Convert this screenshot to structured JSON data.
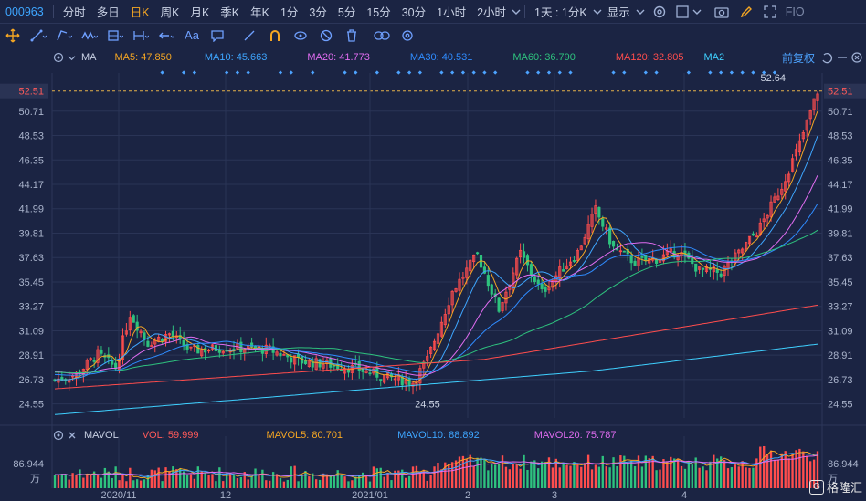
{
  "toolbar": {
    "code": "000963",
    "periods": [
      "分时",
      "多日",
      "日K",
      "周K",
      "月K",
      "季K",
      "年K",
      "1分",
      "3分",
      "5分",
      "15分",
      "30分",
      "1小时",
      "2小时"
    ],
    "active_period": "日K",
    "combo_label": "1天 : 1分K",
    "display_label": "显示",
    "fio_label": "FIO"
  },
  "indicator_bar": {
    "name": "MA",
    "fuquan": "前复权",
    "items": [
      {
        "label": "MA5: 47.850",
        "color": "#f5a623"
      },
      {
        "label": "MA10: 45.663",
        "color": "#3ea6ff"
      },
      {
        "label": "MA20: 41.773",
        "color": "#e06cf0"
      },
      {
        "label": "MA30: 40.531",
        "color": "#2f8cff"
      },
      {
        "label": "MA60: 36.790",
        "color": "#2ec27e"
      },
      {
        "label": "MA120: 32.805",
        "color": "#ff4d4d"
      },
      {
        "label": "MA2",
        "color": "#3fd0ff"
      }
    ]
  },
  "volume_bar": {
    "name": "MAVOL",
    "items": [
      {
        "label": "VOL: 59.999",
        "color": "#ff5a5a"
      },
      {
        "label": "MAVOL5: 80.701",
        "color": "#f5a623"
      },
      {
        "label": "MAVOL10: 88.892",
        "color": "#3ea6ff"
      },
      {
        "label": "MAVOL20: 75.787",
        "color": "#e06cf0"
      }
    ],
    "axis_top": "86.944",
    "axis_unit": "万"
  },
  "watermark": "格隆汇",
  "chart_data": {
    "type": "candlestick",
    "y_ticks": [
      52.51,
      50.71,
      48.53,
      46.35,
      44.17,
      41.99,
      39.81,
      37.63,
      35.45,
      33.27,
      31.09,
      28.91,
      26.73,
      24.55
    ],
    "last_price": 52.51,
    "ylim": [
      23.3,
      53.3
    ],
    "x_labels": [
      "2020/11",
      "12",
      "2021/01",
      "2",
      "3",
      "4"
    ],
    "annotations": {
      "high": 52.64,
      "low": 24.55
    },
    "colors": {
      "up": "#ff4d4d",
      "down": "#2ec27e",
      "grid": "#2a3456"
    }
  }
}
